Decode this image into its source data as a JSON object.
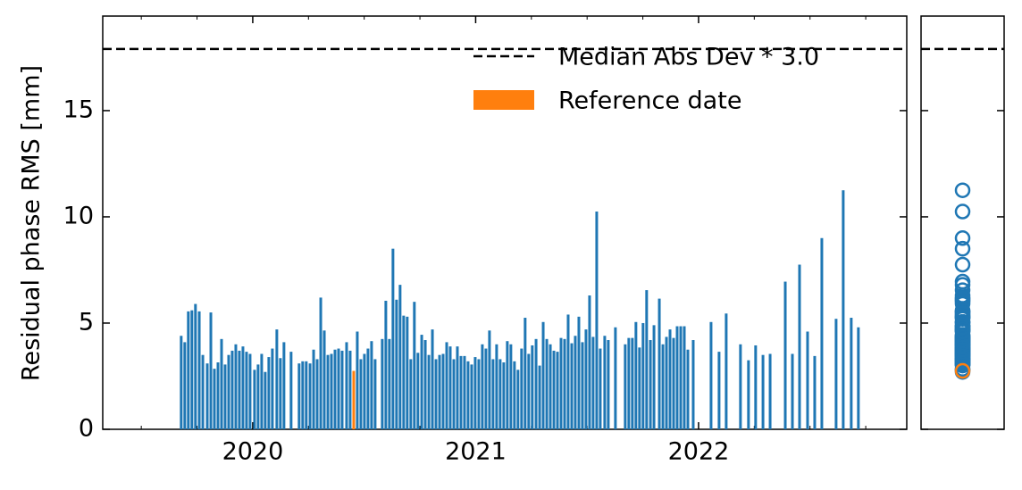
{
  "chart_data": {
    "type": "bar",
    "ylabel": "Residual phase RMS [mm]",
    "xlim": [
      2019.327,
      2022.934
    ],
    "xticks": [
      2020,
      2021,
      2022
    ],
    "xminorticks": [
      2019.5,
      2019.75,
      2020.25,
      2020.5,
      2020.75,
      2021.25,
      2021.5,
      2021.75,
      2022.25,
      2022.5,
      2022.75
    ],
    "ylim": [
      0,
      19.45
    ],
    "yticks": [
      0,
      5,
      10,
      15
    ],
    "legend": "upper right",
    "hlines": [
      {
        "name": "Median Abs Dev * 3.0",
        "value": 17.9,
        "color": "#000000",
        "style": "dashed"
      }
    ],
    "series": [
      {
        "color": "#1f77b4",
        "x": [
          2019.679,
          2019.695,
          2019.711,
          2019.727,
          2019.743,
          2019.76,
          2019.776,
          2019.796,
          2019.812,
          2019.828,
          2019.844,
          2019.86,
          2019.876,
          2019.892,
          2019.908,
          2019.924,
          2019.94,
          2019.956,
          2019.972,
          2019.988,
          2020.008,
          2020.024,
          2020.04,
          2020.056,
          2020.072,
          2020.088,
          2020.108,
          2020.124,
          2020.14,
          2020.172,
          2020.208,
          2020.224,
          2020.24,
          2020.257,
          2020.273,
          2020.289,
          2020.305,
          2020.321,
          2020.337,
          2020.353,
          2020.369,
          2020.385,
          2020.401,
          2020.421,
          2020.437,
          2020.469,
          2020.485,
          2020.501,
          2020.517,
          2020.533,
          2020.549,
          2020.581,
          2020.597,
          2020.613,
          2020.629,
          2020.645,
          2020.661,
          2020.677,
          2020.693,
          2020.709,
          2020.725,
          2020.741,
          2020.758,
          2020.774,
          2020.79,
          2020.806,
          2020.822,
          2020.838,
          2020.854,
          2020.87,
          2020.886,
          2020.902,
          2020.918,
          2020.934,
          2020.95,
          2020.966,
          2020.982,
          2020.998,
          2021.014,
          2021.03,
          2021.046,
          2021.062,
          2021.078,
          2021.094,
          2021.11,
          2021.126,
          2021.142,
          2021.158,
          2021.174,
          2021.19,
          2021.206,
          2021.222,
          2021.238,
          2021.254,
          2021.271,
          2021.287,
          2021.303,
          2021.319,
          2021.335,
          2021.351,
          2021.367,
          2021.383,
          2021.399,
          2021.415,
          2021.431,
          2021.447,
          2021.463,
          2021.479,
          2021.495,
          2021.511,
          2021.527,
          2021.543,
          2021.559,
          2021.579,
          2021.595,
          2021.627,
          2021.671,
          2021.687,
          2021.703,
          2021.719,
          2021.735,
          2021.751,
          2021.767,
          2021.784,
          2021.8,
          2021.824,
          2021.84,
          2021.856,
          2021.872,
          2021.888,
          2021.904,
          2021.92,
          2021.936,
          2021.952,
          2021.976,
          2022.056,
          2022.092,
          2022.124,
          2022.188,
          2022.224,
          2022.256,
          2022.289,
          2022.321,
          2022.389,
          2022.421,
          2022.453,
          2022.489,
          2022.521,
          2022.553,
          2022.617,
          2022.649,
          2022.685,
          2022.717
        ],
        "values": [
          4.4,
          4.1,
          5.55,
          5.6,
          5.9,
          5.55,
          3.5,
          3.1,
          5.5,
          2.85,
          3.15,
          4.25,
          3.05,
          3.5,
          3.7,
          4.0,
          3.7,
          3.9,
          3.65,
          3.55,
          2.8,
          3.05,
          3.55,
          2.7,
          3.4,
          3.8,
          4.7,
          3.35,
          4.1,
          3.65,
          3.1,
          3.2,
          3.2,
          3.1,
          3.75,
          3.3,
          6.2,
          4.65,
          3.5,
          3.55,
          3.75,
          3.8,
          3.7,
          4.1,
          3.7,
          4.6,
          3.3,
          3.55,
          3.8,
          4.15,
          3.3,
          4.25,
          6.05,
          4.25,
          8.5,
          6.1,
          6.8,
          5.35,
          5.3,
          3.3,
          6.0,
          3.6,
          4.45,
          4.2,
          3.5,
          4.7,
          3.3,
          3.5,
          3.55,
          4.1,
          3.9,
          3.3,
          3.9,
          3.45,
          3.45,
          3.2,
          3.05,
          3.4,
          3.3,
          4.0,
          3.8,
          4.65,
          3.3,
          4.0,
          3.3,
          3.15,
          4.15,
          4.0,
          3.2,
          2.8,
          3.8,
          5.25,
          3.55,
          3.95,
          4.25,
          3.0,
          5.05,
          4.25,
          4.0,
          3.7,
          3.65,
          4.3,
          4.25,
          5.4,
          4.05,
          4.4,
          5.3,
          4.1,
          4.7,
          6.3,
          4.35,
          10.25,
          3.8,
          4.4,
          4.2,
          4.8,
          4.0,
          4.3,
          4.3,
          5.05,
          3.85,
          5.0,
          6.55,
          4.2,
          4.9,
          6.15,
          4.0,
          4.35,
          4.7,
          4.3,
          4.85,
          4.85,
          4.85,
          3.75,
          4.2,
          5.05,
          3.65,
          5.45,
          4.0,
          3.25,
          3.95,
          3.5,
          3.55,
          6.95,
          3.55,
          7.75,
          4.6,
          3.45,
          9.0,
          5.2,
          11.25,
          5.25,
          4.8
        ]
      },
      {
        "name": "Reference date",
        "color": "#ff7f0e",
        "x": [
          2020.453
        ],
        "values": [
          2.75
        ]
      }
    ]
  }
}
